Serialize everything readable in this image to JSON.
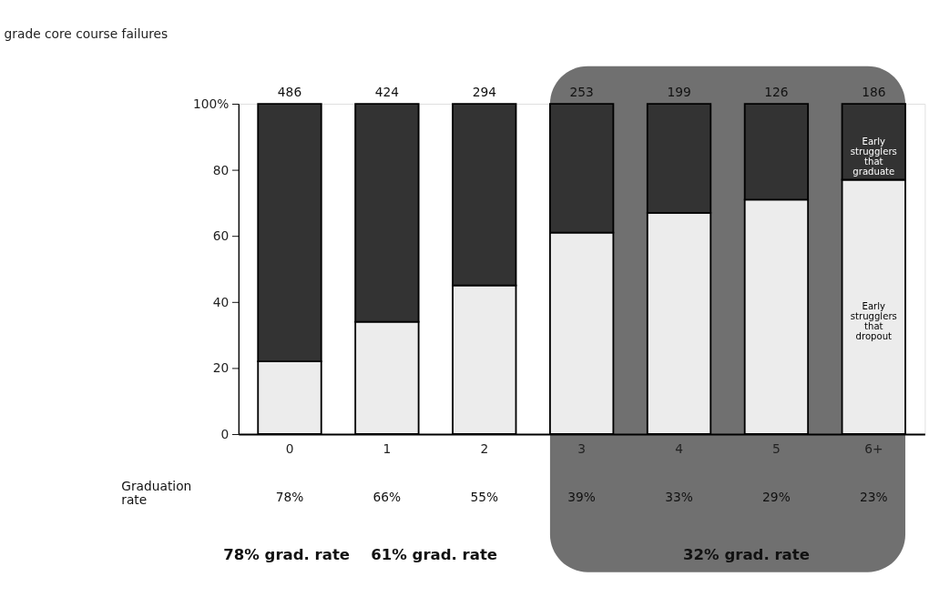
{
  "chart_data": {
    "type": "bar",
    "title": "grade core course failures",
    "categories": [
      "0",
      "1",
      "2",
      "3",
      "4",
      "5",
      "6+"
    ],
    "stacked": true,
    "legend": false,
    "grid": false,
    "series": [
      {
        "name": "Early strugglers that dropout",
        "color": "#ececec",
        "values": [
          22,
          34,
          45,
          61,
          67,
          71,
          77
        ]
      },
      {
        "name": "Early strugglers that graduate",
        "color": "#333333",
        "values": [
          78,
          66,
          55,
          39,
          33,
          29,
          23
        ]
      }
    ],
    "ylim": [
      0,
      100
    ],
    "yticks": [
      0,
      20,
      40,
      60,
      80,
      {
        "value": 100,
        "label": "100%"
      }
    ],
    "bands": [
      {
        "axis": "x",
        "from": "3",
        "to": "6+",
        "color": "#707070"
      }
    ],
    "annotations": [
      "486",
      "424",
      "294",
      "253",
      "199",
      "126",
      "186",
      "Graduation rate",
      "78%",
      "66%",
      "55%",
      "39%",
      "33%",
      "29%",
      "23%",
      "78% grad. rate",
      "61% grad. rate",
      "32% grad. rate"
    ]
  }
}
